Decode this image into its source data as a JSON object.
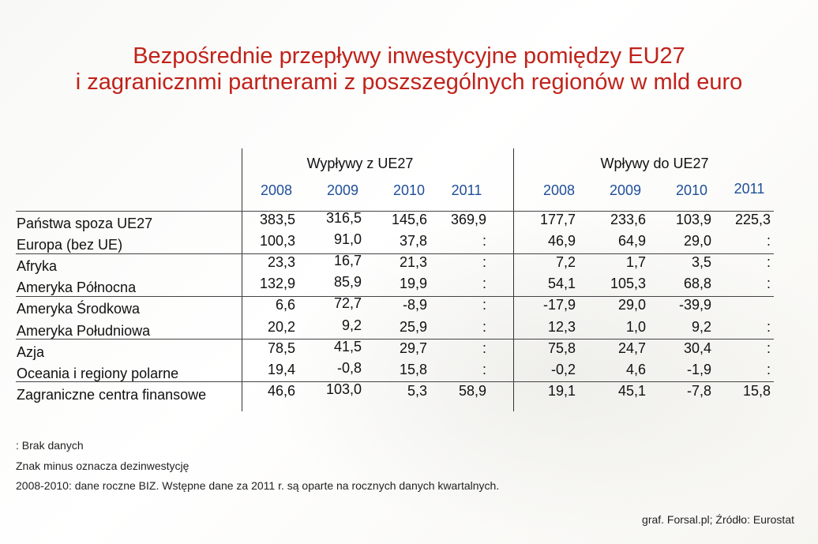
{
  "title": {
    "line1": "Bezpośrednie przepływy inwestycyjne pomiędzy EU27",
    "line2": "i zagranicznmi partnerami z poszszególnych regionów w mld euro"
  },
  "chart_data": {
    "type": "table",
    "groups": [
      "Wypływy z UE27",
      "Wpływy do UE27"
    ],
    "years": [
      "2008",
      "2009",
      "2010",
      "2011"
    ],
    "rows": [
      {
        "label": "Państwa spoza UE27",
        "outflows": [
          "383,5",
          "316,5",
          "145,6",
          "369,9"
        ],
        "inflows": [
          "177,7",
          "233,6",
          "103,9",
          "225,3"
        ]
      },
      {
        "label": "Europa (bez UE)",
        "outflows": [
          "100,3",
          "91,0",
          "37,8",
          ":"
        ],
        "inflows": [
          "46,9",
          "64,9",
          "29,0",
          ":"
        ]
      },
      {
        "label": "Afryka",
        "outflows": [
          "23,3",
          "16,7",
          "21,3",
          ":"
        ],
        "inflows": [
          "7,2",
          "1,7",
          "3,5",
          ":"
        ]
      },
      {
        "label": "Ameryka Północna",
        "outflows": [
          "132,9",
          "85,9",
          "19,9",
          ":"
        ],
        "inflows": [
          "54,1",
          "105,3",
          "68,8",
          ":"
        ]
      },
      {
        "label": "Ameryka Środkowa",
        "outflows": [
          "6,6",
          "72,7",
          "-8,9",
          ":"
        ],
        "inflows": [
          "-17,9",
          "29,0",
          "-39,9",
          ""
        ]
      },
      {
        "label": "Ameryka Południowa",
        "outflows": [
          "20,2",
          "9,2",
          "25,9",
          ":"
        ],
        "inflows": [
          "12,3",
          "1,0",
          "9,2",
          ":"
        ]
      },
      {
        "label": "Azja",
        "outflows": [
          "78,5",
          "41,5",
          "29,7",
          ":"
        ],
        "inflows": [
          "75,8",
          "24,7",
          "30,4",
          ":"
        ]
      },
      {
        "label": "Oceania i regiony polarne",
        "outflows": [
          "19,4",
          "-0,8",
          "15,8",
          ":"
        ],
        "inflows": [
          "-0,2",
          "4,6",
          "-1,9",
          ":"
        ]
      },
      {
        "label": "Zagraniczne centra finansowe",
        "outflows": [
          "46,6",
          "103,0",
          "5,3",
          "58,9"
        ],
        "inflows": [
          "19,1",
          "45,1",
          "-7,8",
          "15,8"
        ]
      }
    ]
  },
  "notes": [
    ": Brak danych",
    "Znak minus oznacza dezinwestycję",
    "2008-2010: dane roczne BIZ. Wstępne dane za 2011 r. są oparte na rocznych danych kwartalnych."
  ],
  "source": "graf. Forsal.pl; Źródło: Eurostat"
}
